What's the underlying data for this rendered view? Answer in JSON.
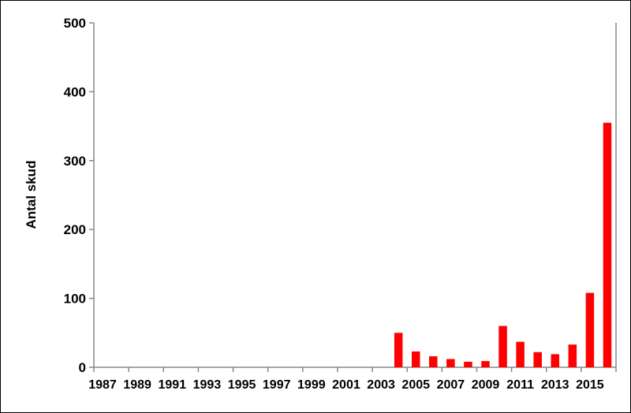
{
  "chart_data": {
    "type": "bar",
    "title": "",
    "xlabel": "",
    "ylabel": "Antal skud",
    "ylim": [
      0,
      500
    ],
    "yticks": [
      0,
      100,
      200,
      300,
      400,
      500
    ],
    "categories": [
      1987,
      1988,
      1989,
      1990,
      1991,
      1992,
      1993,
      1994,
      1995,
      1996,
      1997,
      1998,
      1999,
      2000,
      2001,
      2002,
      2003,
      2004,
      2005,
      2006,
      2007,
      2008,
      2009,
      2010,
      2011,
      2012,
      2013,
      2014,
      2015,
      2016
    ],
    "xtick_labels": [
      "1987",
      "1989",
      "1991",
      "1993",
      "1995",
      "1997",
      "1999",
      "2001",
      "2003",
      "2005",
      "2007",
      "2009",
      "2011",
      "2013",
      "2015"
    ],
    "values": [
      0,
      0,
      0,
      0,
      0,
      0,
      0,
      0,
      0,
      0,
      0,
      0,
      0,
      0,
      0,
      0,
      0,
      50,
      23,
      16,
      12,
      8,
      9,
      60,
      37,
      22,
      19,
      33,
      108,
      355
    ],
    "bar_color": "#ff0000",
    "grid": false,
    "legend": "none"
  }
}
